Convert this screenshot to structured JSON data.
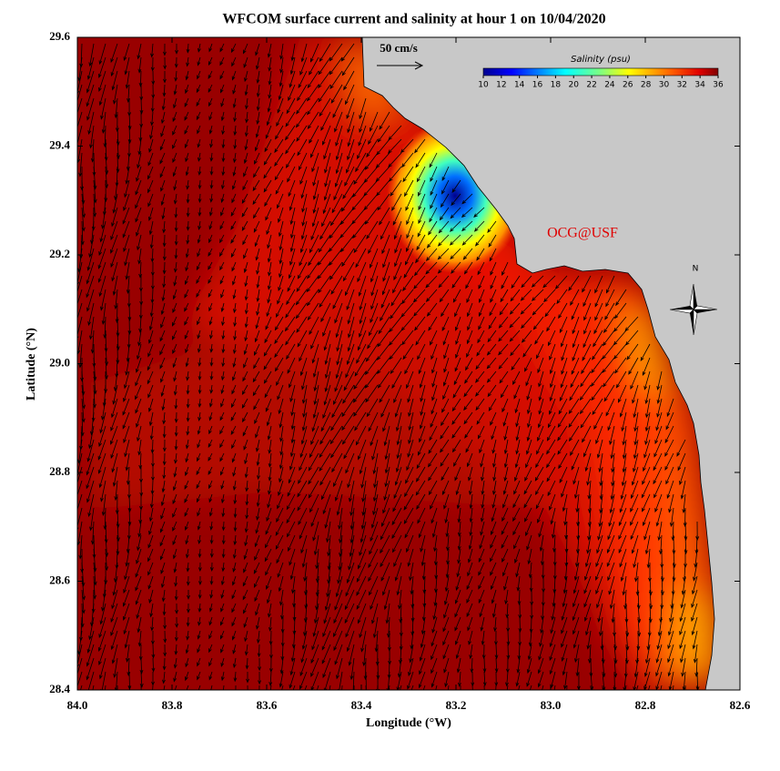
{
  "chart_data": {
    "type": "map",
    "title": "WFCOM surface current and salinity at hour 1 on 10/04/2020",
    "x_label": "Longitude (°W)",
    "y_label": "Latitude (°N)",
    "xlim": [
      84.0,
      82.6
    ],
    "xticks": [
      {
        "value": 84,
        "label": "84.0"
      },
      83.8,
      83.6,
      83.4,
      83.2,
      {
        "value": 83,
        "label": "83.0"
      },
      82.8,
      82.6
    ],
    "ylim": [
      28.4,
      29.6
    ],
    "yticks": [
      28.4,
      28.6,
      28.8,
      {
        "value": 29,
        "label": "29.0"
      },
      29.2,
      29.4,
      29.6
    ],
    "colorbar": {
      "title": "Salinity (psu)",
      "lim": [
        10,
        36
      ],
      "ticks": [
        10,
        12,
        14,
        16,
        18,
        20,
        22,
        24,
        26,
        28,
        30,
        32,
        34,
        36
      ]
    },
    "scale_label": "50 cm/s",
    "credit": "OCG@USF",
    "north_label": "N"
  }
}
